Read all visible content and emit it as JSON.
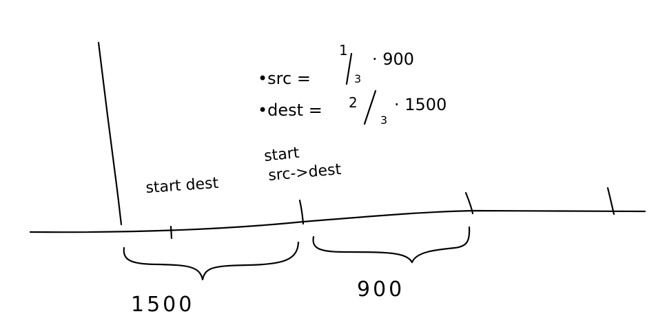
{
  "notes": {
    "src_label": "•src =",
    "src_num": "1",
    "src_den": "3",
    "src_value": "· 900",
    "dest_label": "•dest =",
    "dest_num": "2",
    "dest_den": "3",
    "dest_value": "· 1500"
  },
  "labels": {
    "start_dest": "start dest",
    "start_src_top": "start",
    "start_src_bottom": "src->dest"
  },
  "segments": {
    "left_length": "1500",
    "right_length": "900"
  },
  "ink_color": "#000000"
}
